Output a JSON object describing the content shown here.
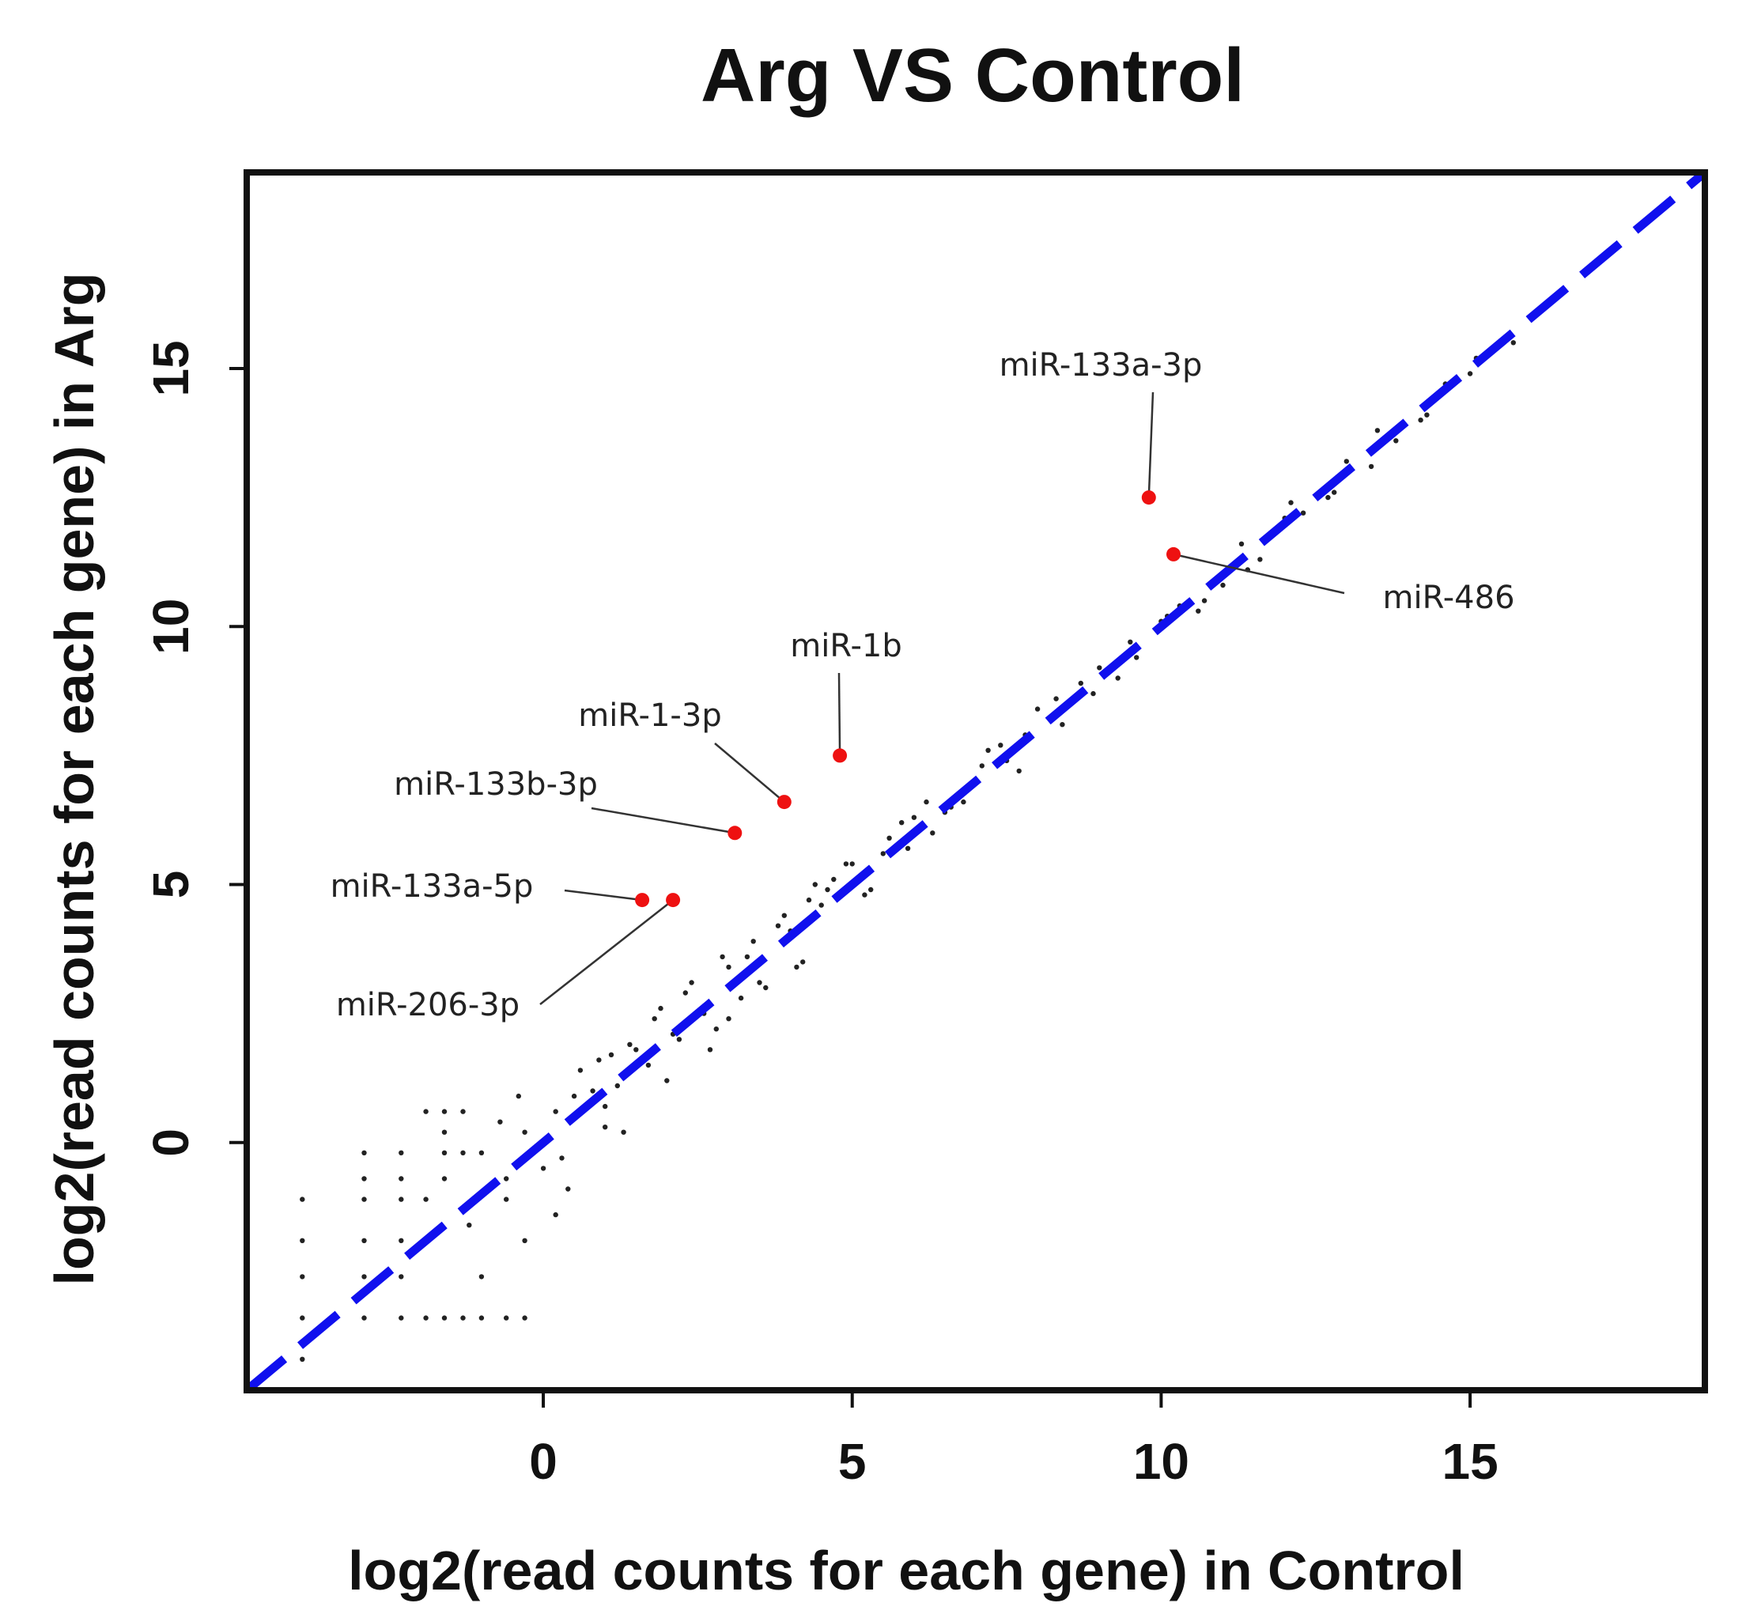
{
  "chart_data": {
    "type": "scatter",
    "title": "Arg VS Control",
    "xlabel": "log2(read counts for each gene) in Control",
    "ylabel": "log2(read counts for each gene) in Arg",
    "xlim": [
      -4.8,
      18.8
    ],
    "ylim": [
      -4.8,
      18.8
    ],
    "xticks": [
      0,
      5,
      10,
      15
    ],
    "yticks": [
      0,
      5,
      10,
      15
    ],
    "grid": false,
    "reference_line": {
      "name": "y = x",
      "slope": 1,
      "intercept": 0,
      "color": "#1010ee",
      "style": "dashed"
    },
    "highlighted": [
      {
        "name": "miR-133a-3p",
        "x": 9.8,
        "y": 12.5,
        "color": "#ee1111"
      },
      {
        "name": "miR-486",
        "x": 10.2,
        "y": 11.4,
        "color": "#ee1111"
      },
      {
        "name": "miR-1b",
        "x": 4.8,
        "y": 7.5,
        "color": "#ee1111"
      },
      {
        "name": "miR-1-3p",
        "x": 3.9,
        "y": 6.6,
        "color": "#ee1111"
      },
      {
        "name": "miR-133b-3p",
        "x": 3.1,
        "y": 6.0,
        "color": "#ee1111"
      },
      {
        "name": "miR-133a-5p",
        "x": 1.6,
        "y": 4.7,
        "color": "#ee1111"
      },
      {
        "name": "miR-206-3p",
        "x": 2.1,
        "y": 4.7,
        "color": "#ee1111"
      }
    ],
    "background_points": {
      "color": "#222222",
      "x": [
        -3.9,
        -3.9,
        -3.9,
        -3.9,
        -3.9,
        -2.9,
        -2.9,
        -2.9,
        -2.9,
        -2.9,
        -2.9,
        -2.3,
        -2.3,
        -2.3,
        -2.3,
        -2.3,
        -2.3,
        -1.9,
        -1.9,
        -1.9,
        -1.9,
        -1.6,
        -1.6,
        -1.6,
        -1.6,
        -1.6,
        -1.3,
        -1.3,
        -1.3,
        -1.0,
        -1.0,
        -1.0,
        -0.6,
        -0.6,
        -0.6,
        -0.3,
        -0.3,
        -0.3,
        0.2,
        0.2,
        0.4,
        0.6,
        0.8,
        1.0,
        1.2,
        1.3,
        1.5,
        1.7,
        1.9,
        2.1,
        2.3,
        2.6,
        2.8,
        3.0,
        3.3,
        3.5,
        3.8,
        4.0,
        4.2,
        4.5,
        4.7,
        5.0,
        5.3,
        5.6,
        5.9,
        6.2,
        6.5,
        6.8,
        7.1,
        7.4,
        7.7,
        8.0,
        8.4,
        8.7,
        9.0,
        9.3,
        9.6,
        10.0,
        10.3,
        10.6,
        11.0,
        11.3,
        11.6,
        12.0,
        12.3,
        12.7,
        13.0,
        13.4,
        13.8,
        14.2,
        14.6,
        15.0,
        15.3,
        15.7,
        -0.7,
        0.5,
        0.9,
        1.4,
        1.8,
        2.4,
        2.9,
        3.4,
        3.9,
        4.4,
        4.9,
        5.5,
        6.0,
        6.6,
        7.2,
        7.8,
        8.3,
        8.9,
        9.5,
        10.1,
        10.7,
        11.4,
        12.1,
        12.8,
        13.5,
        14.3,
        15.1,
        2.0,
        3.0,
        4.1,
        5.2,
        6.3,
        7.5,
        -1.2,
        0.0,
        1.0,
        2.2,
        3.6,
        4.6,
        5.8,
        -0.4,
        1.1,
        0.3,
        2.7,
        3.2,
        4.3
      ],
      "y": [
        -1.1,
        -1.9,
        -2.6,
        -3.4,
        -4.2,
        -0.2,
        -0.7,
        -1.1,
        -1.9,
        -2.6,
        -3.4,
        -0.2,
        -0.7,
        -1.1,
        -1.9,
        -2.6,
        -3.4,
        0.6,
        -1.1,
        -1.9,
        -3.4,
        0.6,
        0.2,
        -0.2,
        -0.7,
        -3.4,
        0.6,
        -0.2,
        -3.4,
        -0.2,
        -2.6,
        -3.4,
        -0.7,
        -1.1,
        -3.4,
        0.2,
        -1.9,
        -3.4,
        0.6,
        -1.4,
        -0.9,
        1.4,
        1.0,
        0.7,
        1.1,
        0.2,
        1.8,
        1.5,
        2.6,
        2.1,
        2.9,
        2.5,
        2.2,
        3.4,
        3.6,
        3.1,
        4.2,
        4.1,
        3.5,
        4.6,
        5.1,
        5.4,
        4.9,
        5.9,
        5.7,
        6.6,
        6.4,
        6.6,
        7.3,
        7.7,
        7.2,
        8.4,
        8.1,
        8.9,
        9.2,
        9.0,
        9.4,
        10.1,
        10.4,
        10.3,
        10.8,
        11.6,
        11.3,
        12.1,
        12.2,
        12.5,
        13.2,
        13.1,
        13.6,
        14.0,
        14.7,
        14.9,
        15.3,
        15.5,
        0.4,
        0.9,
        1.6,
        1.9,
        2.4,
        3.1,
        3.6,
        3.9,
        4.4,
        5.0,
        5.4,
        5.6,
        6.3,
        6.5,
        7.6,
        7.9,
        8.6,
        8.7,
        9.7,
        10.2,
        10.5,
        11.1,
        12.4,
        12.6,
        13.8,
        14.1,
        15.2,
        1.2,
        2.4,
        3.4,
        4.8,
        6.0,
        7.4,
        -1.6,
        -0.5,
        0.3,
        2.0,
        3.0,
        4.9,
        6.2,
        0.9,
        1.7,
        -0.3,
        1.8,
        2.8,
        4.7
      ]
    }
  }
}
